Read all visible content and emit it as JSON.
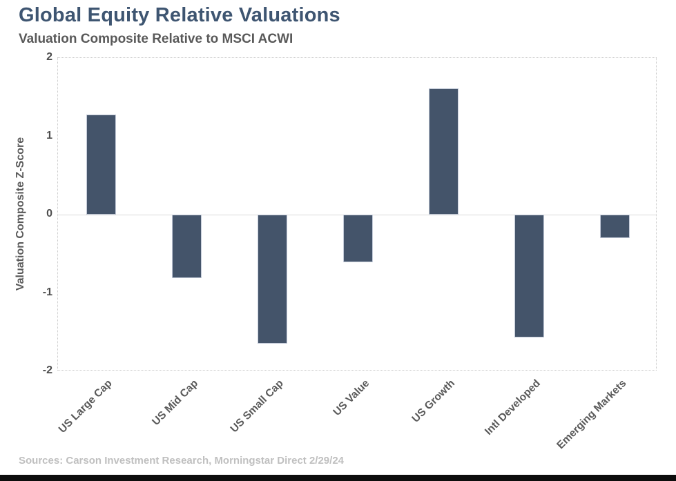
{
  "header": {
    "title": "Global Equity Relative Valuations",
    "subtitle": "Valuation Composite Relative to MSCI ACWI"
  },
  "footer": {
    "source": "Sources: Carson Investment Research, Morningstar Direct 2/29/24"
  },
  "colors": {
    "bar": "#44546A",
    "title": "#3E5571",
    "subtitle": "#595959",
    "axis_text": "#595959",
    "tick_text": "#4d4d4d",
    "source_text": "#BFBFBF",
    "grid": "#D9D9D9",
    "bottom_strip": "#0d0d0d"
  },
  "chart_data": {
    "type": "bar",
    "title": "Global Equity Relative Valuations",
    "subtitle": "Valuation Composite Relative to MSCI ACWI",
    "categories": [
      "US Large Cap",
      "US Mid Cap",
      "US Small Cap",
      "US Value",
      "US Growth",
      "Intl Developed",
      "Emerging Markets"
    ],
    "values": [
      1.28,
      -0.81,
      -1.65,
      -0.61,
      1.61,
      -1.57,
      -0.3
    ],
    "xlabel": "",
    "ylabel": "Valuation Composite Z-Score",
    "ylim": [
      -2,
      2
    ],
    "yticks": [
      2,
      1,
      0,
      -1,
      -2
    ],
    "grid": "zero-line-only",
    "legend": "none",
    "bar_color": "#44546A",
    "x_tick_rotation_deg": 45
  }
}
